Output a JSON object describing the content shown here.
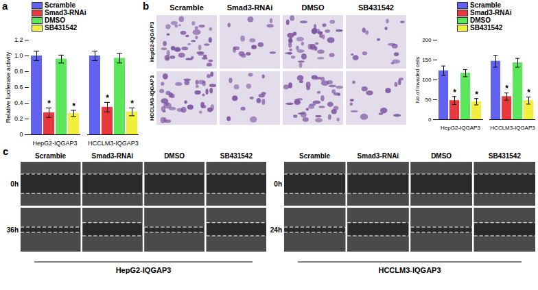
{
  "chart_data": [
    {
      "type": "bar",
      "ylabel": "Relative luciferase activity",
      "categories": [
        "HepG2-IQGAP3",
        "HCCLM3-IQGAP3"
      ],
      "series": [
        {
          "name": "Scramble",
          "color": "#6262f0",
          "values": [
            1.0,
            1.0
          ],
          "errors": [
            0.06,
            0.06
          ]
        },
        {
          "name": "Smad3-RNAi",
          "color": "#e8383d",
          "values": [
            0.28,
            0.35
          ],
          "errors": [
            0.06,
            0.06
          ],
          "annotations": [
            "*",
            "*"
          ]
        },
        {
          "name": "DMSO",
          "color": "#5ce65c",
          "values": [
            0.96,
            0.97
          ],
          "errors": [
            0.05,
            0.06
          ]
        },
        {
          "name": "SB431542",
          "color": "#f0f03c",
          "values": [
            0.27,
            0.29
          ],
          "errors": [
            0.04,
            0.05
          ],
          "annotations": [
            "*",
            "*"
          ]
        }
      ],
      "ylim": [
        0,
        1.2
      ],
      "yticks": [
        0,
        0.2,
        0.4,
        0.6,
        0.8,
        {
          "value": 1,
          "label": "1.0"
        },
        1.2
      ],
      "legend": "top"
    },
    {
      "type": "bar",
      "ylabel": "No.of Invaded cells",
      "categories": [
        "HepG2-IQGAP3",
        "HCCLM3-IQGAP3"
      ],
      "series": [
        {
          "name": "Scramble",
          "color": "#6262f0",
          "values": [
            123,
            147
          ],
          "errors": [
            12,
            15
          ]
        },
        {
          "name": "Smad3-RNAi",
          "color": "#e8383d",
          "values": [
            48,
            58
          ],
          "errors": [
            10,
            9
          ],
          "annotations": [
            "*",
            "*"
          ]
        },
        {
          "name": "DMSO",
          "color": "#5ce65c",
          "values": [
            117,
            143
          ],
          "errors": [
            9,
            11
          ]
        },
        {
          "name": "SB431542",
          "color": "#f0f03c",
          "values": [
            45,
            48
          ],
          "errors": [
            8,
            9
          ],
          "annotations": [
            "*",
            "*"
          ]
        }
      ],
      "ylim": [
        0,
        200
      ],
      "yticks": [
        0,
        50,
        100,
        150,
        200
      ],
      "legend": "top"
    }
  ],
  "panel_labels": [
    "a",
    "b",
    "c"
  ],
  "images": {
    "b": {
      "columns": [
        "Scramble",
        "Smad3-RNAi",
        "DMSO",
        "SB431542"
      ],
      "rows": [
        "HepG2-IQGAP3",
        "HCCLM3-IQGAP3"
      ]
    },
    "c": [
      {
        "columns": [
          "Scramble",
          "Smad3-RNAi",
          "DMSO",
          "SB431542"
        ],
        "rows": [
          "0h",
          "36h"
        ],
        "caption": "HepG2-IQGAP3"
      },
      {
        "columns": [
          "Scramble",
          "Smad3-RNAi",
          "DMSO",
          "SB431542"
        ],
        "rows": [
          "0h",
          "24h"
        ],
        "caption": "HCCLM3-IQGAP3"
      }
    ]
  }
}
